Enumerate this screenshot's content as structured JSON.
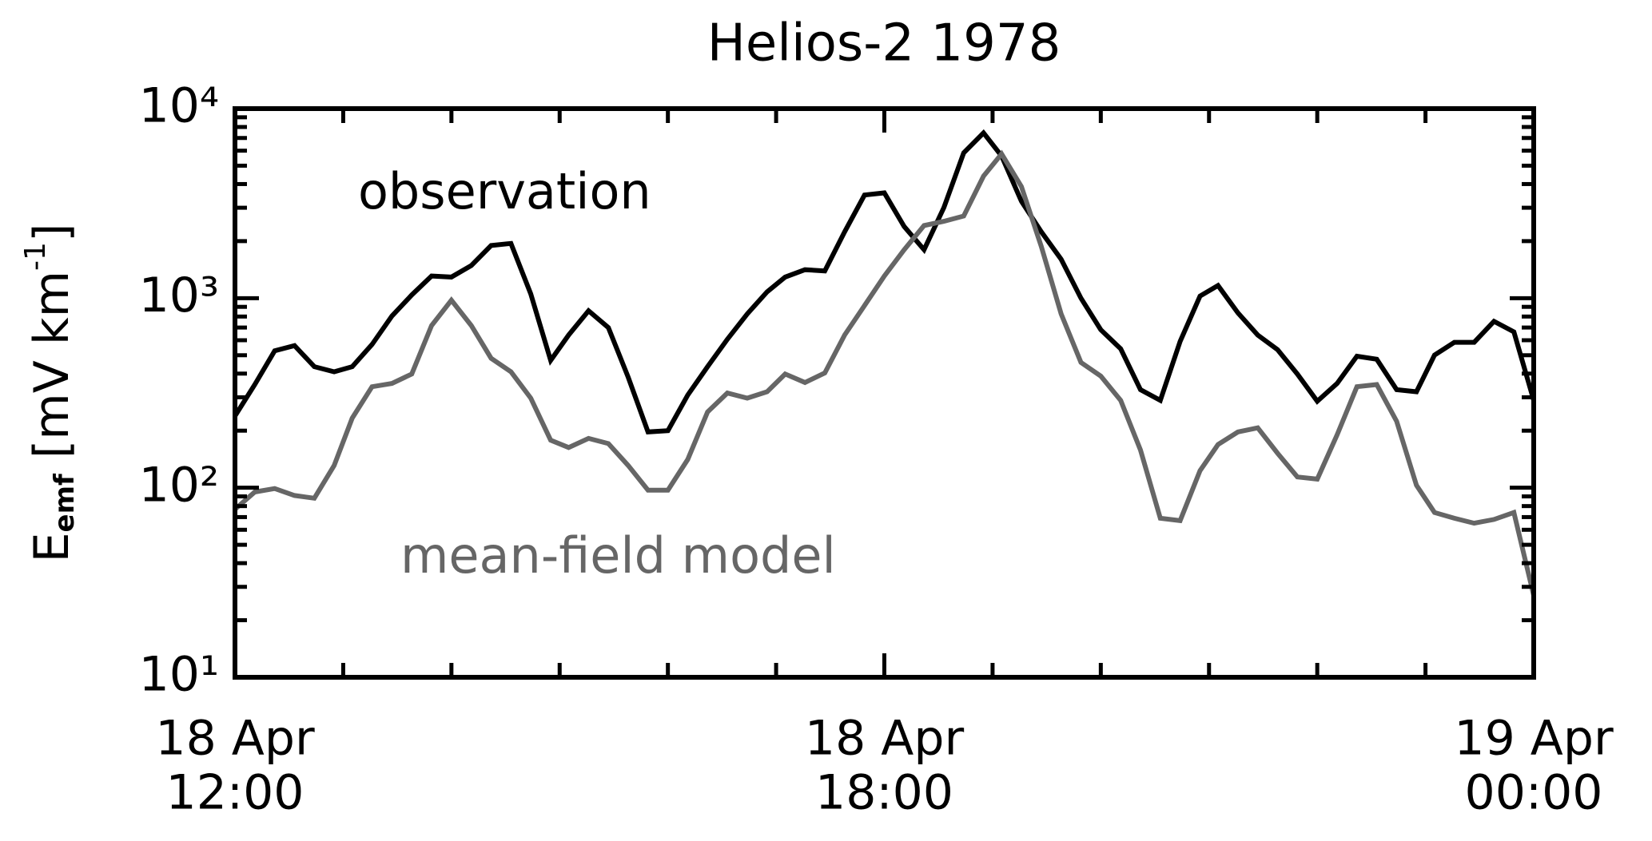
{
  "chart_data": {
    "type": "line",
    "title": "Helios-2 1978",
    "ylabel": {
      "base": "E",
      "sub": "emf",
      "unit": " [mV km",
      "sup": "-1",
      "close": "]"
    },
    "log_y": true,
    "ylim": [
      10,
      10000
    ],
    "yticks": [
      {
        "value": 10,
        "label": "10¹"
      },
      {
        "value": 100,
        "label": "10²"
      },
      {
        "value": 1000,
        "label": "10³"
      },
      {
        "value": 10000,
        "label": "10⁴"
      }
    ],
    "yminorticks": [
      20,
      30,
      40,
      50,
      60,
      70,
      80,
      90,
      200,
      300,
      400,
      500,
      600,
      700,
      800,
      900,
      2000,
      3000,
      4000,
      5000,
      6000,
      7000,
      8000,
      9000
    ],
    "xlim": [
      "18 Apr 12:00",
      "19 Apr 00:00"
    ],
    "xticks": [
      {
        "value": "18 Apr 12:00",
        "label": [
          "18 Apr",
          "12:00"
        ]
      },
      {
        "value": "18 Apr 18:00",
        "label": [
          "18 Apr",
          "18:00"
        ]
      },
      {
        "value": "19 Apr 00:00",
        "label": [
          "19 Apr",
          "00:00"
        ]
      }
    ],
    "xminorticks": [
      "18 Apr 13:00",
      "18 Apr 14:00",
      "18 Apr 15:00",
      "18 Apr 16:00",
      "18 Apr 17:00",
      "18 Apr 19:00",
      "18 Apr 20:00",
      "18 Apr 21:00",
      "18 Apr 22:00",
      "18 Apr 23:00"
    ],
    "x": [
      "18 Apr 12:00",
      "18 Apr 12:11",
      "18 Apr 12:22",
      "18 Apr 12:33",
      "18 Apr 12:44",
      "18 Apr 12:55",
      "18 Apr 13:05",
      "18 Apr 13:16",
      "18 Apr 13:27",
      "18 Apr 13:38",
      "18 Apr 13:49",
      "18 Apr 14:00",
      "18 Apr 14:11",
      "18 Apr 14:22",
      "18 Apr 14:33",
      "18 Apr 14:44",
      "18 Apr 14:55",
      "18 Apr 15:05",
      "18 Apr 15:16",
      "18 Apr 15:27",
      "18 Apr 15:38",
      "18 Apr 15:49",
      "18 Apr 16:00",
      "18 Apr 16:11",
      "18 Apr 16:22",
      "18 Apr 16:33",
      "18 Apr 16:44",
      "18 Apr 16:55",
      "18 Apr 17:05",
      "18 Apr 17:16",
      "18 Apr 17:27",
      "18 Apr 17:38",
      "18 Apr 17:49",
      "18 Apr 18:00",
      "18 Apr 18:11",
      "18 Apr 18:22",
      "18 Apr 18:33",
      "18 Apr 18:44",
      "18 Apr 18:55",
      "18 Apr 19:05",
      "18 Apr 19:16",
      "18 Apr 19:27",
      "18 Apr 19:38",
      "18 Apr 19:49",
      "18 Apr 20:00",
      "18 Apr 20:11",
      "18 Apr 20:22",
      "18 Apr 20:33",
      "18 Apr 20:44",
      "18 Apr 20:55",
      "18 Apr 21:05",
      "18 Apr 21:16",
      "18 Apr 21:27",
      "18 Apr 21:38",
      "18 Apr 21:49",
      "18 Apr 22:00",
      "18 Apr 22:11",
      "18 Apr 22:22",
      "18 Apr 22:33",
      "18 Apr 22:44",
      "18 Apr 22:55",
      "18 Apr 23:05",
      "18 Apr 23:16",
      "18 Apr 23:27",
      "18 Apr 23:38",
      "18 Apr 23:49",
      "19 Apr 00:00"
    ],
    "series": [
      {
        "name": "observation",
        "color": "#000000",
        "values": [
          239,
          350,
          528,
          562,
          435,
          409,
          435,
          570,
          805,
          1040,
          1309,
          1292,
          1486,
          1896,
          1945,
          1053,
          470,
          639,
          858,
          699,
          383,
          197,
          200,
          308,
          435,
          607,
          826,
          1080,
          1292,
          1413,
          1393,
          2239,
          3500,
          3594,
          2388,
          1801,
          3006,
          5843,
          7448,
          5623,
          3246,
          2239,
          1605,
          1000,
          681,
          541,
          329,
          289,
          592,
          1026,
          1166,
          836,
          639,
          535,
          398,
          286,
          355,
          494,
          476,
          329,
          321,
          501,
          585,
          585,
          755,
          664,
          289
        ]
      },
      {
        "name": "mean-field model",
        "color": "#666666",
        "values": [
          77,
          95,
          99,
          91,
          88,
          131,
          233,
          341,
          355,
          398,
          717,
          975,
          717,
          482,
          409,
          297,
          178,
          163,
          182,
          171,
          131,
          97,
          97,
          141,
          251,
          316,
          297,
          321,
          398,
          359,
          403,
          639,
          914,
          1309,
          1801,
          2417,
          2545,
          2713,
          4406,
          5768,
          3881,
          1873,
          826,
          458,
          388,
          289,
          158,
          69,
          67,
          123,
          169,
          197,
          207,
          152,
          114,
          111,
          190,
          341,
          350,
          224,
          103,
          74,
          69,
          65,
          68,
          74,
          27
        ]
      }
    ]
  }
}
